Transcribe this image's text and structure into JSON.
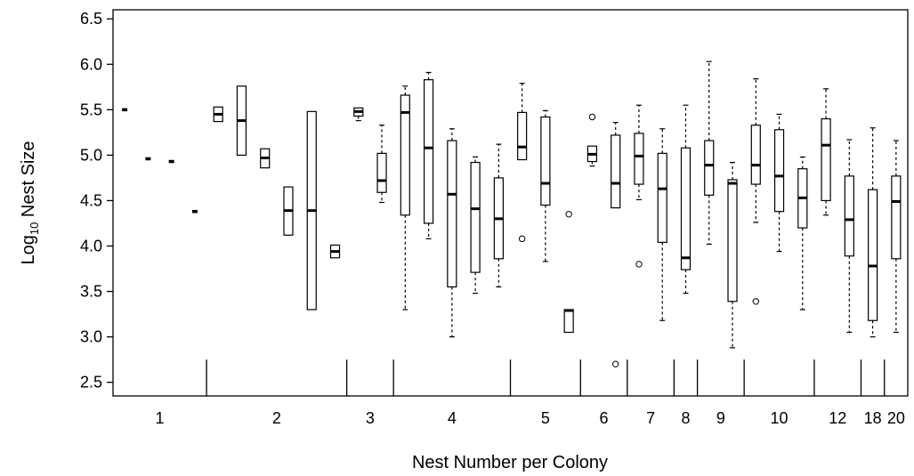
{
  "chart_data": {
    "type": "box",
    "title": "",
    "xlabel": "Nest Number per Colony",
    "ylabel_main": "Log",
    "ylabel_sub": "10",
    "ylabel_rest": " Nest Size",
    "ylim": [
      2.35,
      6.6
    ],
    "yticks": [
      "2.5",
      "3.0",
      "3.5",
      "4.0",
      "4.5",
      "5.0",
      "5.5",
      "6.0",
      "6.5"
    ],
    "ytick_values": [
      2.5,
      3.0,
      3.5,
      4.0,
      4.5,
      5.0,
      5.5,
      6.0,
      6.5
    ],
    "x_groups": [
      "1",
      "2",
      "3",
      "4",
      "5",
      "6",
      "7",
      "8",
      "9",
      "10",
      "12",
      "18",
      "20"
    ],
    "group_ranges": [
      [
        1,
        4
      ],
      [
        5,
        10
      ],
      [
        11,
        12
      ],
      [
        13,
        17
      ],
      [
        18,
        20
      ],
      [
        21,
        22
      ],
      [
        23,
        24
      ],
      [
        25,
        25
      ],
      [
        26,
        27
      ],
      [
        28,
        30
      ],
      [
        31,
        32
      ],
      [
        33,
        33
      ],
      [
        34,
        34
      ]
    ],
    "total_slots": 34,
    "boxes": [
      {
        "q1": 5.5,
        "median": 5.5,
        "q3": 5.5,
        "whisker_low": 5.5,
        "whisker_high": 5.5,
        "outliers": []
      },
      {
        "q1": 4.96,
        "median": 4.96,
        "q3": 4.96,
        "whisker_low": 4.96,
        "whisker_high": 4.96,
        "outliers": []
      },
      {
        "q1": 4.93,
        "median": 4.93,
        "q3": 4.93,
        "whisker_low": 4.93,
        "whisker_high": 4.93,
        "outliers": []
      },
      {
        "q1": 4.38,
        "median": 4.38,
        "q3": 4.38,
        "whisker_low": 4.38,
        "whisker_high": 4.38,
        "outliers": []
      },
      {
        "q1": 5.37,
        "median": 5.45,
        "q3": 5.53,
        "whisker_low": 5.37,
        "whisker_high": 5.53,
        "outliers": []
      },
      {
        "q1": 5.0,
        "median": 5.38,
        "q3": 5.76,
        "whisker_low": 5.0,
        "whisker_high": 5.76,
        "outliers": []
      },
      {
        "q1": 4.86,
        "median": 4.97,
        "q3": 5.07,
        "whisker_low": 4.86,
        "whisker_high": 5.07,
        "outliers": []
      },
      {
        "q1": 4.12,
        "median": 4.39,
        "q3": 4.65,
        "whisker_low": 4.12,
        "whisker_high": 4.65,
        "outliers": []
      },
      {
        "q1": 3.3,
        "median": 4.39,
        "q3": 5.48,
        "whisker_low": 3.3,
        "whisker_high": 5.48,
        "outliers": []
      },
      {
        "q1": 3.87,
        "median": 3.94,
        "q3": 4.01,
        "whisker_low": 3.87,
        "whisker_high": 4.01,
        "outliers": []
      },
      {
        "q1": 5.43,
        "median": 5.48,
        "q3": 5.52,
        "whisker_low": 5.38,
        "whisker_high": 5.52,
        "outliers": []
      },
      {
        "q1": 4.59,
        "median": 4.72,
        "q3": 5.02,
        "whisker_low": 4.48,
        "whisker_high": 5.33,
        "outliers": []
      },
      {
        "q1": 4.34,
        "median": 5.47,
        "q3": 5.66,
        "whisker_low": 3.3,
        "whisker_high": 5.76,
        "outliers": []
      },
      {
        "q1": 4.25,
        "median": 5.08,
        "q3": 5.83,
        "whisker_low": 4.08,
        "whisker_high": 5.91,
        "outliers": []
      },
      {
        "q1": 3.55,
        "median": 4.57,
        "q3": 5.16,
        "whisker_low": 3.0,
        "whisker_high": 5.29,
        "outliers": []
      },
      {
        "q1": 3.71,
        "median": 4.41,
        "q3": 4.92,
        "whisker_low": 3.48,
        "whisker_high": 4.98,
        "outliers": []
      },
      {
        "q1": 3.86,
        "median": 4.3,
        "q3": 4.75,
        "whisker_low": 3.55,
        "whisker_high": 5.12,
        "outliers": []
      },
      {
        "q1": 4.95,
        "median": 5.09,
        "q3": 5.47,
        "whisker_low": 4.95,
        "whisker_high": 5.79,
        "outliers": [
          4.08
        ]
      },
      {
        "q1": 4.45,
        "median": 4.69,
        "q3": 5.42,
        "whisker_low": 3.83,
        "whisker_high": 5.49,
        "outliers": []
      },
      {
        "q1": 3.05,
        "median": 3.29,
        "q3": 3.3,
        "whisker_low": 3.05,
        "whisker_high": 3.3,
        "outliers": [
          4.35
        ]
      },
      {
        "q1": 4.93,
        "median": 5.01,
        "q3": 5.1,
        "whisker_low": 4.88,
        "whisker_high": 5.1,
        "outliers": [
          5.42
        ]
      },
      {
        "q1": 4.42,
        "median": 4.69,
        "q3": 5.22,
        "whisker_low": 4.42,
        "whisker_high": 5.36,
        "outliers": [
          2.7
        ]
      },
      {
        "q1": 4.68,
        "median": 4.99,
        "q3": 5.24,
        "whisker_low": 4.51,
        "whisker_high": 5.55,
        "outliers": [
          3.8
        ]
      },
      {
        "q1": 4.04,
        "median": 4.63,
        "q3": 5.02,
        "whisker_low": 3.18,
        "whisker_high": 5.29,
        "outliers": []
      },
      {
        "q1": 3.74,
        "median": 3.87,
        "q3": 5.08,
        "whisker_low": 3.48,
        "whisker_high": 5.55,
        "outliers": []
      },
      {
        "q1": 4.56,
        "median": 4.89,
        "q3": 5.16,
        "whisker_low": 4.02,
        "whisker_high": 6.03,
        "outliers": []
      },
      {
        "q1": 3.39,
        "median": 4.69,
        "q3": 4.73,
        "whisker_low": 2.88,
        "whisker_high": 4.92,
        "outliers": []
      },
      {
        "q1": 4.68,
        "median": 4.89,
        "q3": 5.33,
        "whisker_low": 4.26,
        "whisker_high": 5.84,
        "outliers": [
          3.39
        ]
      },
      {
        "q1": 4.38,
        "median": 4.77,
        "q3": 5.28,
        "whisker_low": 3.94,
        "whisker_high": 5.45,
        "outliers": []
      },
      {
        "q1": 4.2,
        "median": 4.53,
        "q3": 4.85,
        "whisker_low": 3.3,
        "whisker_high": 4.98,
        "outliers": []
      },
      {
        "q1": 4.5,
        "median": 5.11,
        "q3": 5.4,
        "whisker_low": 4.34,
        "whisker_high": 5.73,
        "outliers": []
      },
      {
        "q1": 3.89,
        "median": 4.29,
        "q3": 4.77,
        "whisker_low": 3.05,
        "whisker_high": 5.17,
        "outliers": []
      },
      {
        "q1": 3.18,
        "median": 3.78,
        "q3": 4.62,
        "whisker_low": 3.0,
        "whisker_high": 5.3,
        "outliers": []
      },
      {
        "q1": 3.86,
        "median": 4.49,
        "q3": 4.77,
        "whisker_low": 3.05,
        "whisker_high": 5.16,
        "outliers": []
      }
    ]
  }
}
